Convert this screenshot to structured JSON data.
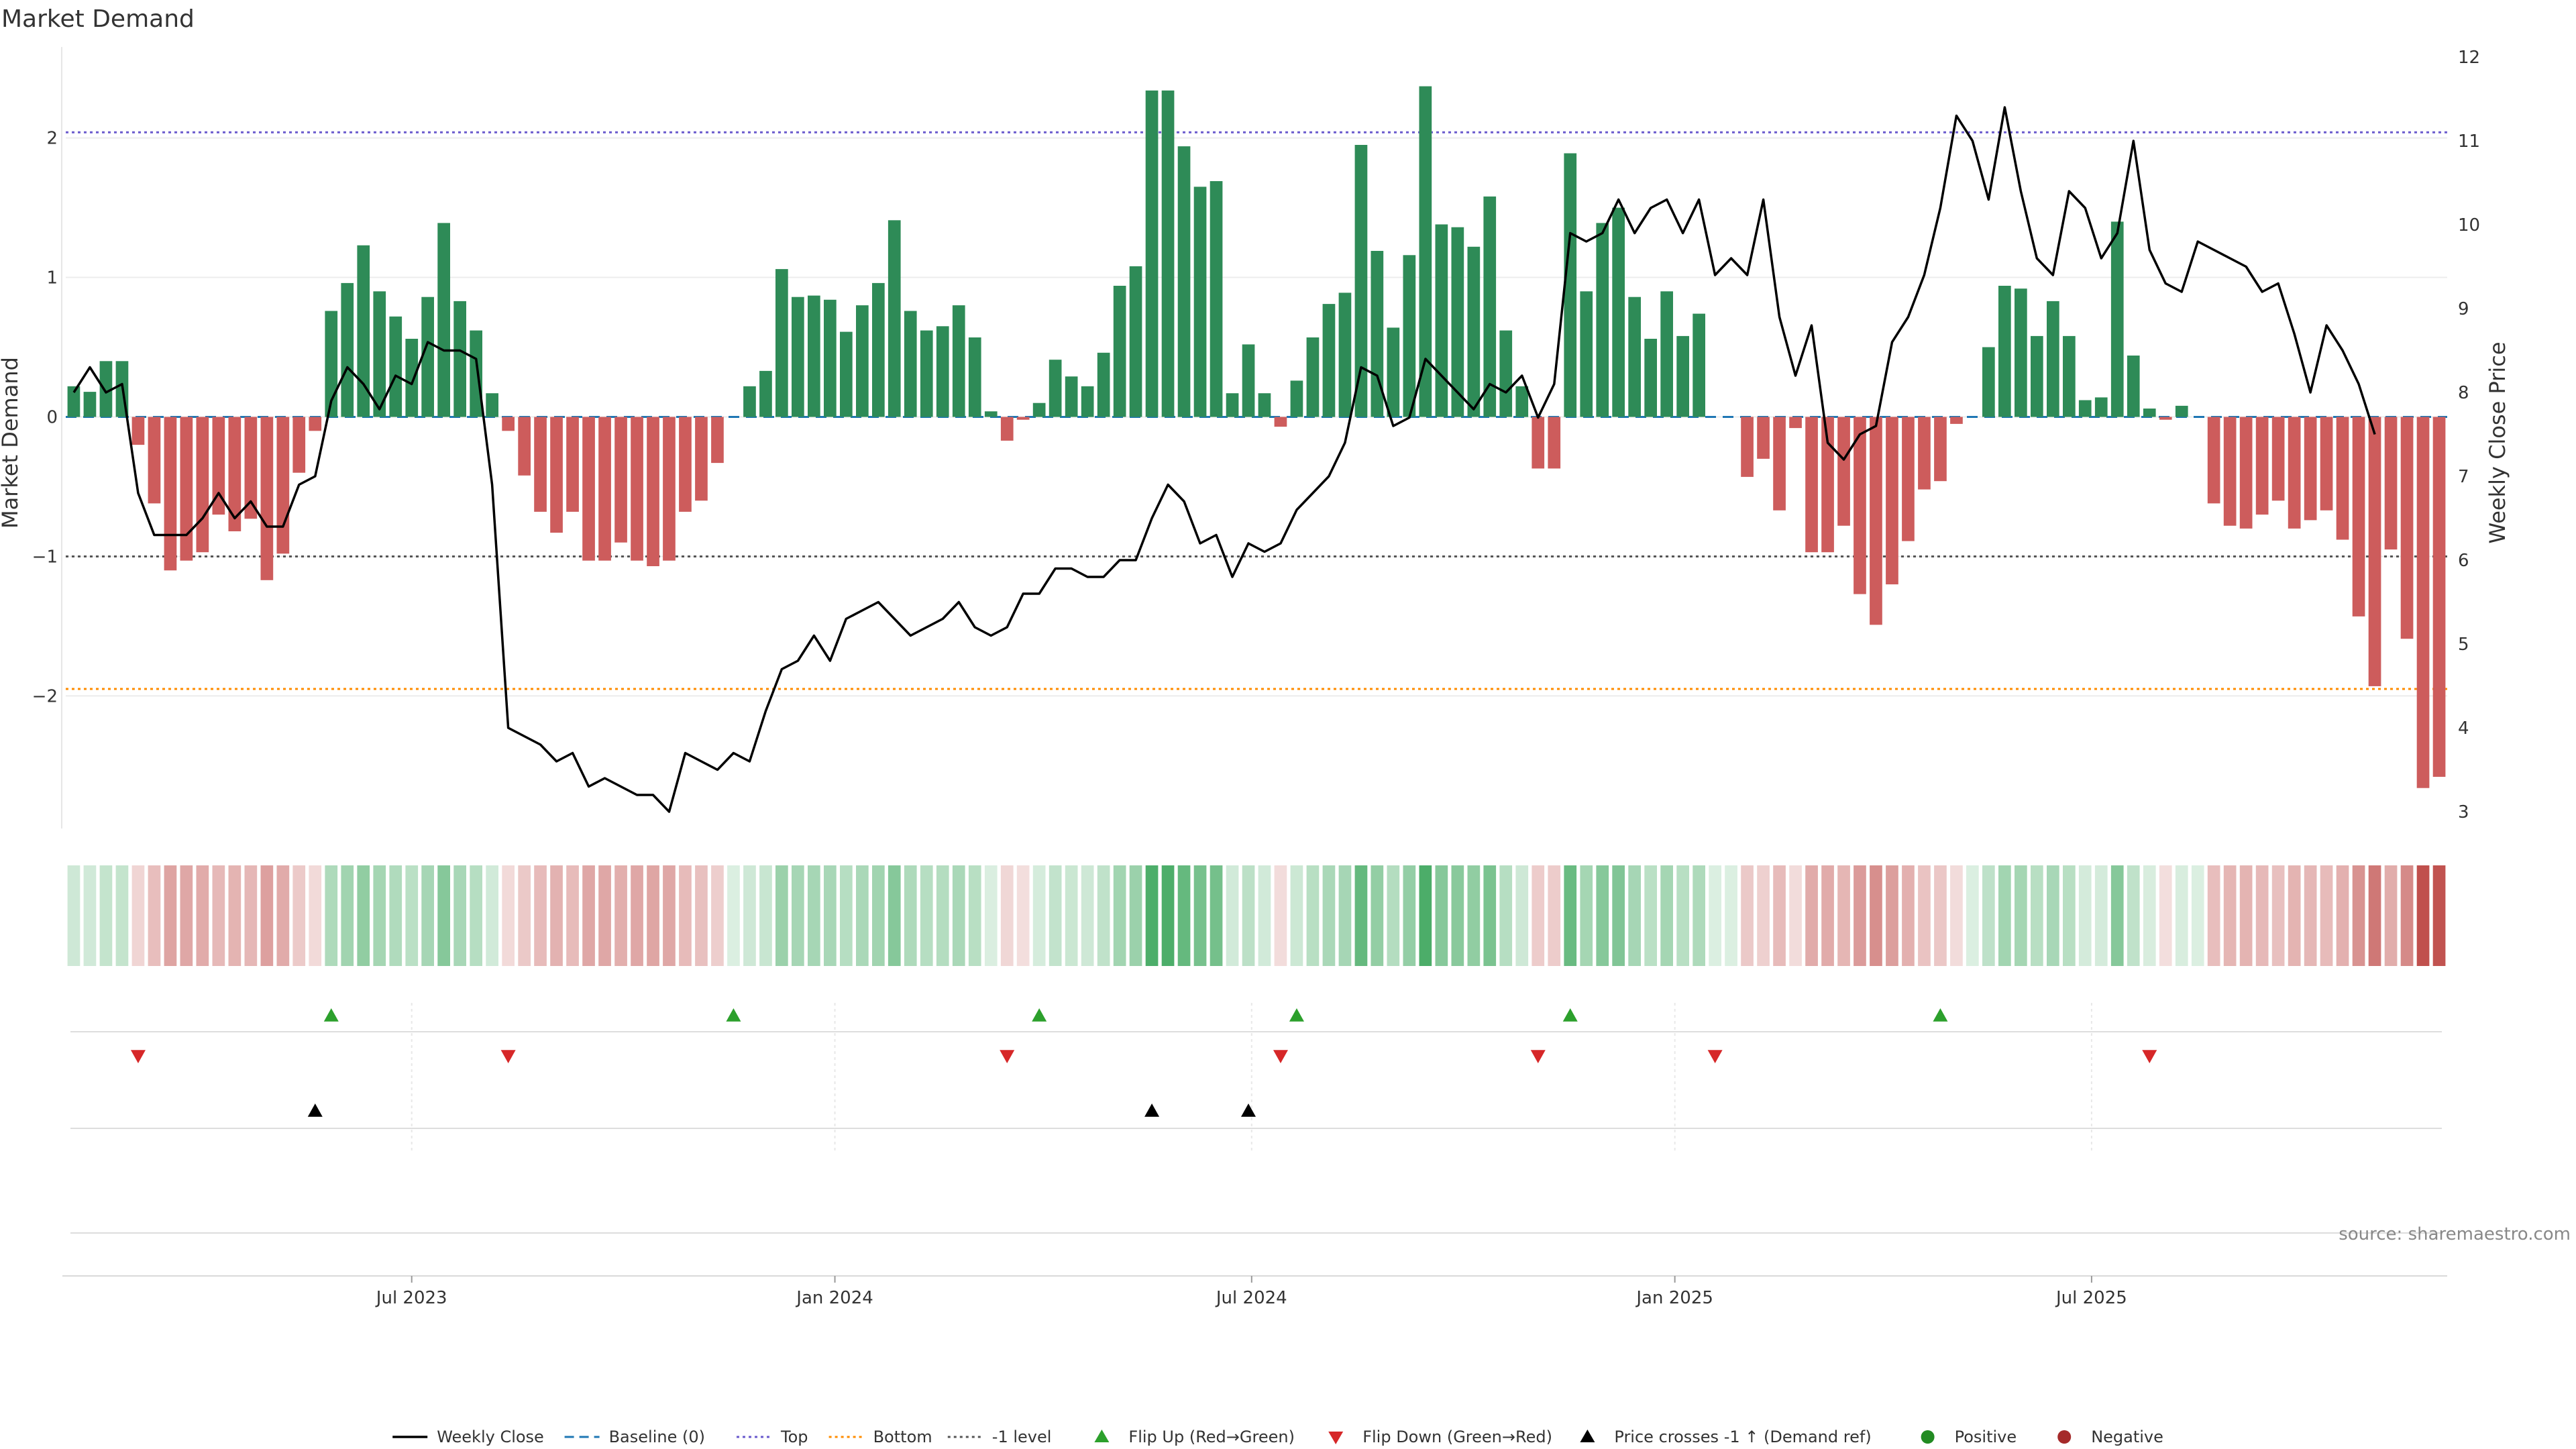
{
  "chart_data": {
    "type": "bar",
    "title": "Market Demand",
    "ylabel": "Market Demand",
    "y2label": "Weekly Close Price",
    "ylim": [
      -2.95,
      2.7
    ],
    "y2lim": [
      2.8,
      12.2
    ],
    "yticks": [
      "2",
      "1",
      "0",
      "−1",
      "−2"
    ],
    "y2ticks": [
      "12",
      "11",
      "10",
      "9",
      "8",
      "7",
      "6",
      "5",
      "4",
      "3"
    ],
    "x_start_week_index": 0,
    "x_labels": [
      {
        "label": "Jul 2023",
        "week": 21
      },
      {
        "label": "Jan 2024",
        "week": 47.3
      },
      {
        "label": "Jul 2024",
        "week": 73.2
      },
      {
        "label": "Jan 2025",
        "week": 99.5
      },
      {
        "label": "Jul 2025",
        "week": 125.4
      }
    ],
    "reference_lines": {
      "top": 2.04,
      "bottom": -1.95,
      "minus_one": -1.0,
      "baseline": 0
    },
    "series": [
      {
        "name": "Market Demand",
        "values": [
          0.22,
          0.18,
          0.4,
          0.4,
          -0.2,
          -0.62,
          -1.1,
          -1.03,
          -0.97,
          -0.7,
          -0.82,
          -0.73,
          -1.17,
          -0.98,
          -0.4,
          -0.1,
          0.76,
          0.96,
          1.23,
          0.9,
          0.72,
          0.56,
          0.86,
          1.39,
          0.83,
          0.62,
          0.17,
          -0.1,
          -0.42,
          -0.68,
          -0.83,
          -0.68,
          -1.03,
          -1.03,
          -0.9,
          -1.03,
          -1.07,
          -1.03,
          -0.68,
          -0.6,
          -0.33,
          0,
          0.22,
          0.33,
          1.06,
          0.86,
          0.87,
          0.84,
          0.61,
          0.8,
          0.96,
          1.41,
          0.76,
          0.62,
          0.65,
          0.8,
          0.57,
          0.04,
          -0.17,
          -0.02,
          0.1,
          0.41,
          0.29,
          0.22,
          0.46,
          0.94,
          1.08,
          2.34,
          2.34,
          1.94,
          1.65,
          1.69,
          0.17,
          0.52,
          0.17,
          -0.07,
          0.26,
          0.57,
          0.81,
          0.89,
          1.95,
          1.19,
          0.64,
          1.16,
          2.37,
          1.38,
          1.36,
          1.22,
          1.58,
          0.62,
          0.22,
          -0.37,
          -0.37,
          1.89,
          0.9,
          1.39,
          1.5,
          0.86,
          0.56,
          0.9,
          0.58,
          0.74,
          0,
          0,
          -0.43,
          -0.3,
          -0.67,
          -0.08,
          -0.97,
          -0.97,
          -0.78,
          -1.27,
          -1.49,
          -1.2,
          -0.89,
          -0.52,
          -0.46,
          -0.05,
          0,
          0.5,
          0.94,
          0.92,
          0.58,
          0.83,
          0.58,
          0.12,
          0.14,
          1.4,
          0.44,
          0.06,
          -0.02,
          0.08,
          0,
          -0.62,
          -0.78,
          -0.8,
          -0.7,
          -0.6,
          -0.8,
          -0.74,
          -0.67,
          -0.88,
          -1.43,
          -1.93,
          -0.95,
          -1.59,
          -2.66,
          -2.58
        ]
      },
      {
        "name": "Weekly Close",
        "values": [
          8.0,
          8.3,
          8.0,
          8.1,
          6.8,
          6.3,
          6.3,
          6.3,
          6.5,
          6.8,
          6.5,
          6.7,
          6.4,
          6.4,
          6.9,
          7.0,
          7.9,
          8.3,
          8.1,
          7.8,
          8.2,
          8.1,
          8.6,
          8.5,
          8.5,
          8.4,
          6.9,
          4.0,
          3.9,
          3.8,
          3.6,
          3.7,
          3.3,
          3.4,
          3.3,
          3.2,
          3.2,
          3.0,
          3.7,
          3.6,
          3.5,
          3.7,
          3.6,
          4.2,
          4.7,
          4.8,
          5.1,
          4.8,
          5.3,
          5.4,
          5.5,
          5.3,
          5.1,
          5.2,
          5.3,
          5.5,
          5.2,
          5.1,
          5.2,
          5.6,
          5.6,
          5.9,
          5.9,
          5.8,
          5.8,
          6.0,
          6.0,
          6.5,
          6.9,
          6.7,
          6.2,
          6.3,
          5.8,
          6.2,
          6.1,
          6.2,
          6.6,
          6.8,
          7.0,
          7.4,
          8.3,
          8.2,
          7.6,
          7.7,
          8.4,
          8.2,
          8.0,
          7.8,
          8.1,
          8.0,
          8.2,
          7.7,
          8.1,
          9.9,
          9.8,
          9.9,
          10.3,
          9.9,
          10.2,
          10.3,
          9.9,
          10.3,
          9.4,
          9.6,
          9.4,
          10.3,
          8.9,
          8.2,
          8.8,
          7.4,
          7.2,
          7.5,
          7.6,
          8.6,
          8.9,
          9.4,
          10.2,
          11.3,
          11.0,
          10.3,
          11.4,
          10.4,
          9.6,
          9.4,
          10.4,
          10.2,
          9.6,
          9.9,
          11.0,
          9.7,
          9.3,
          9.2,
          9.8,
          9.7,
          9.6,
          9.5,
          9.2,
          9.3,
          8.7,
          8.0,
          8.8,
          8.5,
          8.1,
          7.5
        ]
      }
    ],
    "legend": [
      {
        "label": "Weekly Close",
        "marker": "line",
        "color": "#000000"
      },
      {
        "label": "Baseline (0)",
        "marker": "dashed",
        "color": "#1f77b4"
      },
      {
        "label": "Top",
        "marker": "dotted",
        "color": "#6a5acd"
      },
      {
        "label": "Bottom",
        "marker": "dotted",
        "color": "#ff8c00"
      },
      {
        "label": "-1 level",
        "marker": "dotted",
        "color": "#555555"
      },
      {
        "label": "Flip Up (Red→Green)",
        "marker": "tri-up",
        "color": "#2ca02c"
      },
      {
        "label": "Flip Down (Green→Red)",
        "marker": "tri-down",
        "color": "#d62728"
      },
      {
        "label": "Price crosses -1 ↑ (Demand ref)",
        "marker": "tri-up",
        "color": "#000000"
      },
      {
        "label": "Positive",
        "marker": "dot",
        "color": "#228b22"
      },
      {
        "label": "Negative",
        "marker": "dot",
        "color": "#a52a2a"
      }
    ],
    "flip_up_weeks": [
      16,
      41,
      60,
      76,
      93,
      116
    ],
    "flip_down_weeks": [
      4,
      27,
      58,
      75,
      91,
      102,
      129
    ],
    "price_cross_weeks": [
      15,
      67,
      73
    ],
    "source": "source: sharemaestro.com"
  },
  "colors": {
    "positive_bar": "#2e8b57",
    "negative_bar": "#cd5c5c",
    "heat_positive": "#3aa55a",
    "heat_negative": "#c0504d",
    "price_line": "#000000"
  }
}
